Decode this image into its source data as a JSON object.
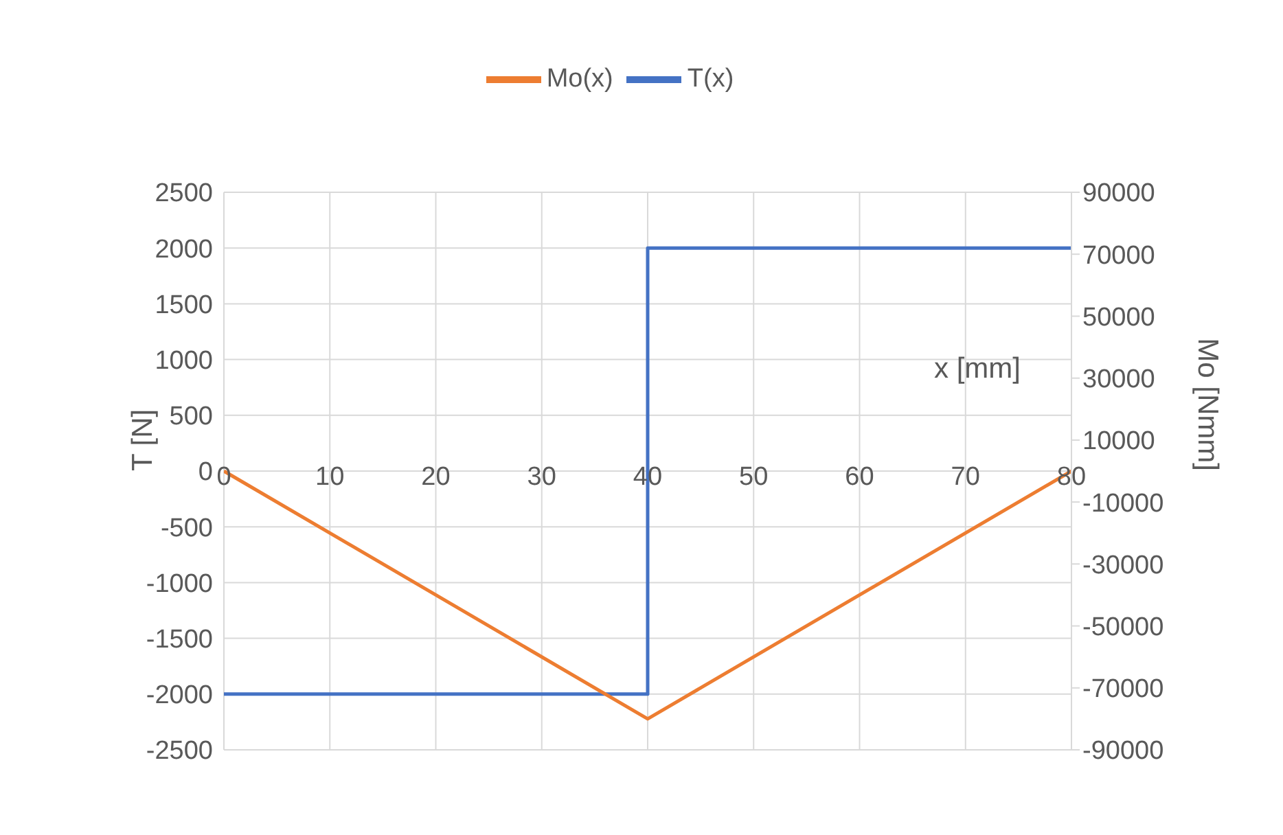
{
  "chart_data": {
    "type": "line",
    "xlabel": "x [mm]",
    "ylabel": "T [N]",
    "y2label": "Mo [Nmm]",
    "xlim": [
      0,
      80
    ],
    "xticks": [
      0,
      10,
      20,
      30,
      40,
      50,
      60,
      70,
      80
    ],
    "ylim": [
      -2500,
      2500
    ],
    "yticks": [
      -2500,
      -2000,
      -1500,
      -1000,
      -500,
      0,
      500,
      1000,
      1500,
      2000,
      2500
    ],
    "y2lim": [
      -90000,
      90000
    ],
    "y2ticks": [
      -90000,
      -70000,
      -50000,
      -30000,
      -10000,
      10000,
      30000,
      50000,
      70000,
      90000
    ],
    "grid": true,
    "legend": "top",
    "marker": "none",
    "line_style": "solid",
    "series": [
      {
        "name": "T(x)",
        "color": "#4472c4",
        "x": [
          0,
          40,
          40,
          80
        ],
        "values": [
          -2000,
          -2000,
          2000,
          2000
        ]
      },
      {
        "name": "Mo(x)",
        "color": "#ed7d31",
        "axis": "y2",
        "x": [
          0,
          40,
          80
        ],
        "values": [
          0,
          -80000,
          0
        ]
      }
    ]
  }
}
